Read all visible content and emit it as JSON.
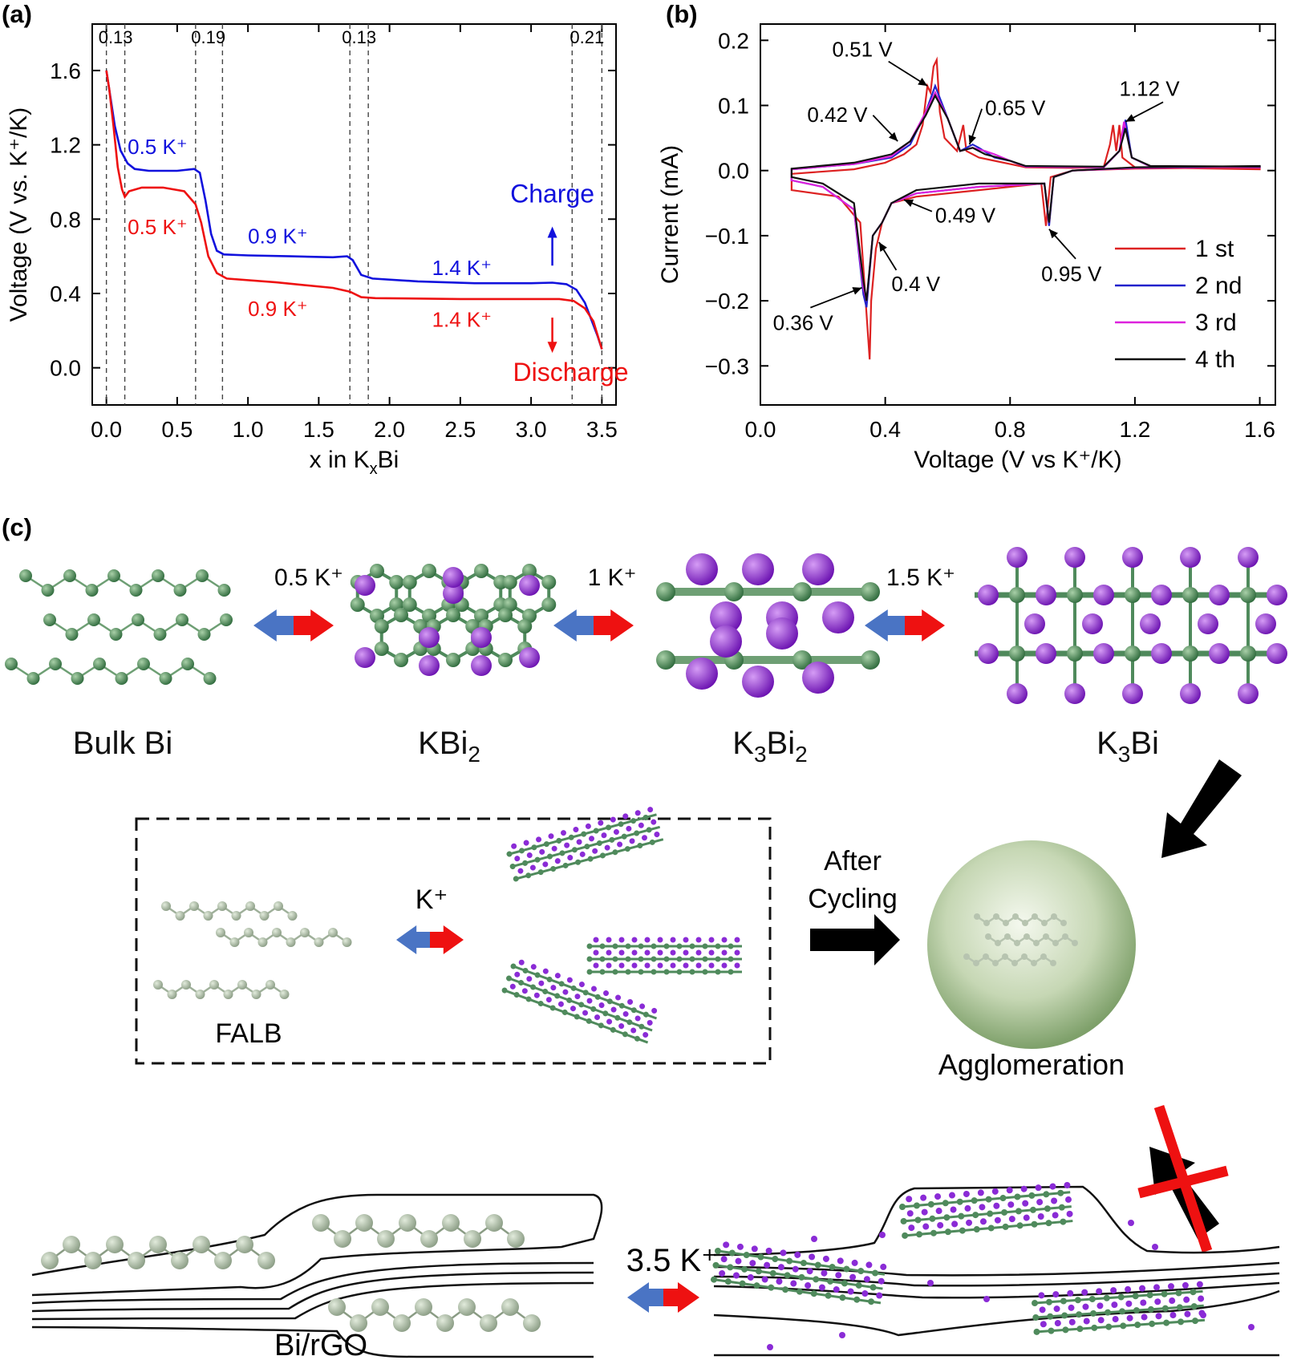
{
  "panels": {
    "a": {
      "letter": "(a)"
    },
    "b": {
      "letter": "(b)"
    },
    "c": {
      "letter": "(c)"
    }
  },
  "chart_data": [
    {
      "type": "line",
      "xlabel": "x in K",
      "xlabel_sub": "x",
      "xlabel_end": "Bi",
      "ylabel": "Voltage (V vs. K⁺/K)",
      "xlim": [
        -0.1,
        3.6
      ],
      "ylim": [
        -0.2,
        1.85
      ],
      "x_ticks": [
        "0.0",
        "0.5",
        "1.0",
        "1.5",
        "2.0",
        "2.5",
        "3.0",
        "3.5"
      ],
      "x_tick_values": [
        0,
        0.5,
        1.0,
        1.5,
        2.0,
        2.5,
        3.0,
        3.5
      ],
      "y_ticks": [
        "0.0",
        "0.4",
        "0.8",
        "1.2",
        "1.6"
      ],
      "y_tick_values": [
        0,
        0.4,
        0.8,
        1.2,
        1.6
      ],
      "stage_lines": [
        0.0,
        0.13,
        0.63,
        0.82,
        1.72,
        1.85,
        3.29,
        3.5
      ],
      "stage_labels": [
        {
          "text": "0.13",
          "x": 0.065
        },
        {
          "text": "0.19",
          "x": 0.72
        },
        {
          "text": "0.13",
          "x": 1.785
        },
        {
          "text": "0.21",
          "x": 3.395
        }
      ],
      "series": [
        {
          "name": "Charge",
          "color": "#1111dd",
          "points": [
            [
              0,
              1.6
            ],
            [
              0.03,
              1.45
            ],
            [
              0.06,
              1.3
            ],
            [
              0.1,
              1.17
            ],
            [
              0.15,
              1.1
            ],
            [
              0.2,
              1.07
            ],
            [
              0.3,
              1.06
            ],
            [
              0.5,
              1.06
            ],
            [
              0.62,
              1.07
            ],
            [
              0.66,
              1.05
            ],
            [
              0.7,
              0.9
            ],
            [
              0.74,
              0.72
            ],
            [
              0.78,
              0.63
            ],
            [
              0.83,
              0.61
            ],
            [
              1.0,
              0.605
            ],
            [
              1.3,
              0.6
            ],
            [
              1.6,
              0.595
            ],
            [
              1.7,
              0.6
            ],
            [
              1.74,
              0.58
            ],
            [
              1.8,
              0.5
            ],
            [
              1.88,
              0.48
            ],
            [
              2.2,
              0.465
            ],
            [
              2.6,
              0.455
            ],
            [
              3.0,
              0.455
            ],
            [
              3.15,
              0.458
            ],
            [
              3.25,
              0.45
            ],
            [
              3.32,
              0.42
            ],
            [
              3.38,
              0.35
            ],
            [
              3.43,
              0.25
            ],
            [
              3.47,
              0.17
            ],
            [
              3.5,
              0.1
            ]
          ]
        },
        {
          "name": "Discharge",
          "color": "#ee1111",
          "points": [
            [
              0,
              1.6
            ],
            [
              0.02,
              1.5
            ],
            [
              0.05,
              1.3
            ],
            [
              0.08,
              1.08
            ],
            [
              0.11,
              0.96
            ],
            [
              0.13,
              0.92
            ],
            [
              0.16,
              0.95
            ],
            [
              0.25,
              0.97
            ],
            [
              0.4,
              0.97
            ],
            [
              0.55,
              0.95
            ],
            [
              0.63,
              0.88
            ],
            [
              0.67,
              0.78
            ],
            [
              0.72,
              0.6
            ],
            [
              0.78,
              0.51
            ],
            [
              0.85,
              0.48
            ],
            [
              1.2,
              0.46
            ],
            [
              1.6,
              0.43
            ],
            [
              1.72,
              0.41
            ],
            [
              1.8,
              0.38
            ],
            [
              1.9,
              0.375
            ],
            [
              2.5,
              0.37
            ],
            [
              3.0,
              0.37
            ],
            [
              3.2,
              0.37
            ],
            [
              3.3,
              0.36
            ],
            [
              3.38,
              0.32
            ],
            [
              3.44,
              0.25
            ],
            [
              3.48,
              0.15
            ],
            [
              3.5,
              0.1
            ]
          ]
        }
      ],
      "annotations": [
        {
          "text": "0.5 K⁺",
          "color": "#1111dd",
          "x": 0.15,
          "y": 1.15
        },
        {
          "text": "0.5 K⁺",
          "color": "#ee1111",
          "x": 0.15,
          "y": 0.72
        },
        {
          "text": "0.9 K⁺",
          "color": "#1111dd",
          "x": 1.0,
          "y": 0.67
        },
        {
          "text": "0.9 K⁺",
          "color": "#ee1111",
          "x": 1.0,
          "y": 0.28
        },
        {
          "text": "1.4 K⁺",
          "color": "#1111dd",
          "x": 2.3,
          "y": 0.5
        },
        {
          "text": "1.4 K⁺",
          "color": "#ee1111",
          "x": 2.3,
          "y": 0.22
        }
      ],
      "charge_label": "Charge",
      "discharge_label": "Discharge"
    },
    {
      "type": "line",
      "xlabel": "Voltage (V vs K⁺/K)",
      "ylabel": "Current  (mA)",
      "xlim": [
        0.0,
        1.65
      ],
      "ylim": [
        -0.36,
        0.225
      ],
      "x_ticks": [
        "0.0",
        "0.4",
        "0.8",
        "1.2",
        "1.6"
      ],
      "x_tick_values": [
        0,
        0.4,
        0.8,
        1.2,
        1.6
      ],
      "y_ticks": [
        "0.2",
        "0.1",
        "0.0",
        "−0.1",
        "−0.2",
        "−0.3"
      ],
      "y_tick_values": [
        0.2,
        0.1,
        0.0,
        -0.1,
        -0.2,
        -0.3
      ],
      "series": [
        {
          "name": "1 st",
          "color": "#dd2222",
          "anodic": [
            [
              0.1,
              -0.005
            ],
            [
              0.3,
              0.002
            ],
            [
              0.4,
              0.012
            ],
            [
              0.46,
              0.025
            ],
            [
              0.5,
              0.04
            ],
            [
              0.52,
              0.07
            ],
            [
              0.535,
              0.13
            ],
            [
              0.545,
              0.12
            ],
            [
              0.555,
              0.16
            ],
            [
              0.565,
              0.17
            ],
            [
              0.575,
              0.09
            ],
            [
              0.59,
              0.05
            ],
            [
              0.63,
              0.03
            ],
            [
              0.65,
              0.07
            ],
            [
              0.66,
              0.03
            ],
            [
              0.7,
              0.02
            ],
            [
              0.75,
              0.015
            ],
            [
              0.8,
              0.01
            ],
            [
              0.85,
              0.005
            ],
            [
              1.0,
              0.004
            ],
            [
              1.1,
              0.005
            ],
            [
              1.12,
              0.04
            ],
            [
              1.13,
              0.07
            ],
            [
              1.14,
              0.03
            ],
            [
              1.15,
              0.07
            ],
            [
              1.16,
              0.02
            ],
            [
              1.2,
              0.005
            ],
            [
              1.6,
              0.002
            ]
          ],
          "cathodic": [
            [
              1.6,
              0.005
            ],
            [
              1.2,
              0.003
            ],
            [
              1.0,
              0.0
            ],
            [
              0.93,
              -0.01
            ],
            [
              0.915,
              -0.085
            ],
            [
              0.9,
              -0.02
            ],
            [
              0.7,
              -0.03
            ],
            [
              0.5,
              -0.04
            ],
            [
              0.42,
              -0.05
            ],
            [
              0.39,
              -0.08
            ],
            [
              0.37,
              -0.12
            ],
            [
              0.355,
              -0.2
            ],
            [
              0.35,
              -0.29
            ],
            [
              0.34,
              -0.22
            ],
            [
              0.32,
              -0.08
            ],
            [
              0.25,
              -0.04
            ],
            [
              0.1,
              -0.03
            ]
          ]
        },
        {
          "name": "2 nd",
          "color": "#2222cc",
          "anodic": [
            [
              0.1,
              0.002
            ],
            [
              0.3,
              0.01
            ],
            [
              0.42,
              0.02
            ],
            [
              0.48,
              0.04
            ],
            [
              0.53,
              0.09
            ],
            [
              0.56,
              0.13
            ],
            [
              0.6,
              0.08
            ],
            [
              0.64,
              0.03
            ],
            [
              0.68,
              0.04
            ],
            [
              0.7,
              0.035
            ],
            [
              0.75,
              0.02
            ],
            [
              0.8,
              0.015
            ],
            [
              0.85,
              0.006
            ],
            [
              1.1,
              0.005
            ],
            [
              1.15,
              0.03
            ],
            [
              1.17,
              0.078
            ],
            [
              1.19,
              0.02
            ],
            [
              1.25,
              0.006
            ],
            [
              1.6,
              0.005
            ]
          ],
          "cathodic": [
            [
              1.6,
              0.006
            ],
            [
              1.2,
              0.004
            ],
            [
              1.0,
              0.0
            ],
            [
              0.94,
              -0.01
            ],
            [
              0.925,
              -0.085
            ],
            [
              0.91,
              -0.02
            ],
            [
              0.7,
              -0.025
            ],
            [
              0.5,
              -0.035
            ],
            [
              0.42,
              -0.05
            ],
            [
              0.39,
              -0.08
            ],
            [
              0.36,
              -0.1
            ],
            [
              0.34,
              -0.21
            ],
            [
              0.33,
              -0.19
            ],
            [
              0.3,
              -0.06
            ],
            [
              0.2,
              -0.025
            ],
            [
              0.1,
              -0.015
            ]
          ]
        },
        {
          "name": "3 rd",
          "color": "#dd22dd",
          "anodic": [
            [
              0.1,
              0.002
            ],
            [
              0.3,
              0.01
            ],
            [
              0.42,
              0.022
            ],
            [
              0.48,
              0.045
            ],
            [
              0.53,
              0.09
            ],
            [
              0.56,
              0.12
            ],
            [
              0.6,
              0.08
            ],
            [
              0.64,
              0.03
            ],
            [
              0.68,
              0.035
            ],
            [
              0.72,
              0.03
            ],
            [
              0.75,
              0.025
            ],
            [
              0.8,
              0.015
            ],
            [
              0.85,
              0.006
            ],
            [
              1.1,
              0.005
            ],
            [
              1.15,
              0.03
            ],
            [
              1.165,
              0.075
            ],
            [
              1.19,
              0.02
            ],
            [
              1.25,
              0.006
            ],
            [
              1.6,
              0.005
            ]
          ],
          "cathodic": [
            [
              1.6,
              0.006
            ],
            [
              1.2,
              0.004
            ],
            [
              1.0,
              0.0
            ],
            [
              0.94,
              -0.01
            ],
            [
              0.925,
              -0.08
            ],
            [
              0.91,
              -0.02
            ],
            [
              0.7,
              -0.025
            ],
            [
              0.5,
              -0.035
            ],
            [
              0.42,
              -0.05
            ],
            [
              0.39,
              -0.08
            ],
            [
              0.36,
              -0.1
            ],
            [
              0.34,
              -0.2
            ],
            [
              0.33,
              -0.18
            ],
            [
              0.3,
              -0.06
            ],
            [
              0.2,
              -0.025
            ],
            [
              0.1,
              -0.015
            ]
          ]
        },
        {
          "name": "4 th",
          "color": "#111111",
          "anodic": [
            [
              0.1,
              0.003
            ],
            [
              0.3,
              0.012
            ],
            [
              0.42,
              0.025
            ],
            [
              0.48,
              0.045
            ],
            [
              0.53,
              0.085
            ],
            [
              0.56,
              0.115
            ],
            [
              0.6,
              0.08
            ],
            [
              0.64,
              0.03
            ],
            [
              0.68,
              0.035
            ],
            [
              0.72,
              0.025
            ],
            [
              0.8,
              0.015
            ],
            [
              0.85,
              0.007
            ],
            [
              1.1,
              0.006
            ],
            [
              1.15,
              0.03
            ],
            [
              1.17,
              0.065
            ],
            [
              1.19,
              0.02
            ],
            [
              1.25,
              0.007
            ],
            [
              1.6,
              0.006
            ]
          ],
          "cathodic": [
            [
              1.6,
              0.007
            ],
            [
              1.2,
              0.005
            ],
            [
              1.0,
              0.0
            ],
            [
              0.94,
              -0.01
            ],
            [
              0.925,
              -0.08
            ],
            [
              0.91,
              -0.02
            ],
            [
              0.7,
              -0.02
            ],
            [
              0.5,
              -0.03
            ],
            [
              0.42,
              -0.05
            ],
            [
              0.39,
              -0.08
            ],
            [
              0.36,
              -0.1
            ],
            [
              0.34,
              -0.2
            ],
            [
              0.33,
              -0.17
            ],
            [
              0.3,
              -0.05
            ],
            [
              0.2,
              -0.02
            ],
            [
              0.1,
              -0.01
            ]
          ]
        }
      ],
      "peak_labels": [
        {
          "text": "0.51 V",
          "tx": 0.23,
          "ty": 0.175,
          "px": 0.535,
          "py": 0.13
        },
        {
          "text": "0.42 V",
          "tx": 0.15,
          "ty": 0.075,
          "px": 0.44,
          "py": 0.045
        },
        {
          "text": "0.65 V",
          "tx": 0.72,
          "ty": 0.085,
          "px": 0.67,
          "py": 0.04
        },
        {
          "text": "1.12 V",
          "tx": 1.15,
          "ty": 0.115,
          "px": 1.17,
          "py": 0.075
        },
        {
          "text": "0.49 V",
          "tx": 0.56,
          "ty": -0.08,
          "px": 0.46,
          "py": -0.045
        },
        {
          "text": "0.95 V",
          "tx": 0.9,
          "ty": -0.17,
          "px": 0.925,
          "py": -0.09
        },
        {
          "text": "0.4 V",
          "tx": 0.42,
          "ty": -0.185,
          "px": 0.38,
          "py": -0.11
        },
        {
          "text": "0.36 V",
          "tx": 0.04,
          "ty": -0.245,
          "px": 0.325,
          "py": -0.18
        }
      ]
    }
  ],
  "diagram": {
    "stages": [
      {
        "main": "Bulk Bi",
        "sub": "",
        "post": ""
      },
      {
        "main": "KBi",
        "sub": "2",
        "post": ""
      },
      {
        "main": "K",
        "sub": "3",
        "post": "Bi"
      },
      {
        "main": "K",
        "sub": "3",
        "post": "Bi"
      }
    ],
    "stage3_sub2": "2",
    "step_labels": [
      "0.5 K⁺",
      "1 K⁺",
      "1.5 K⁺"
    ],
    "box_k": "K⁺",
    "falb": "FALB",
    "after_cycling_1": "After",
    "after_cycling_2": "Cycling",
    "agglomeration": "Agglomeration",
    "bi_rgo": "Bi/rGO",
    "bottom_k": "3.5 K⁺",
    "colors": {
      "bi": "#4f8a5c",
      "k": "#8a2bd6",
      "falb_bi": "#9fb09a",
      "red": "#ee1111",
      "blue": "#4a74c4"
    }
  }
}
